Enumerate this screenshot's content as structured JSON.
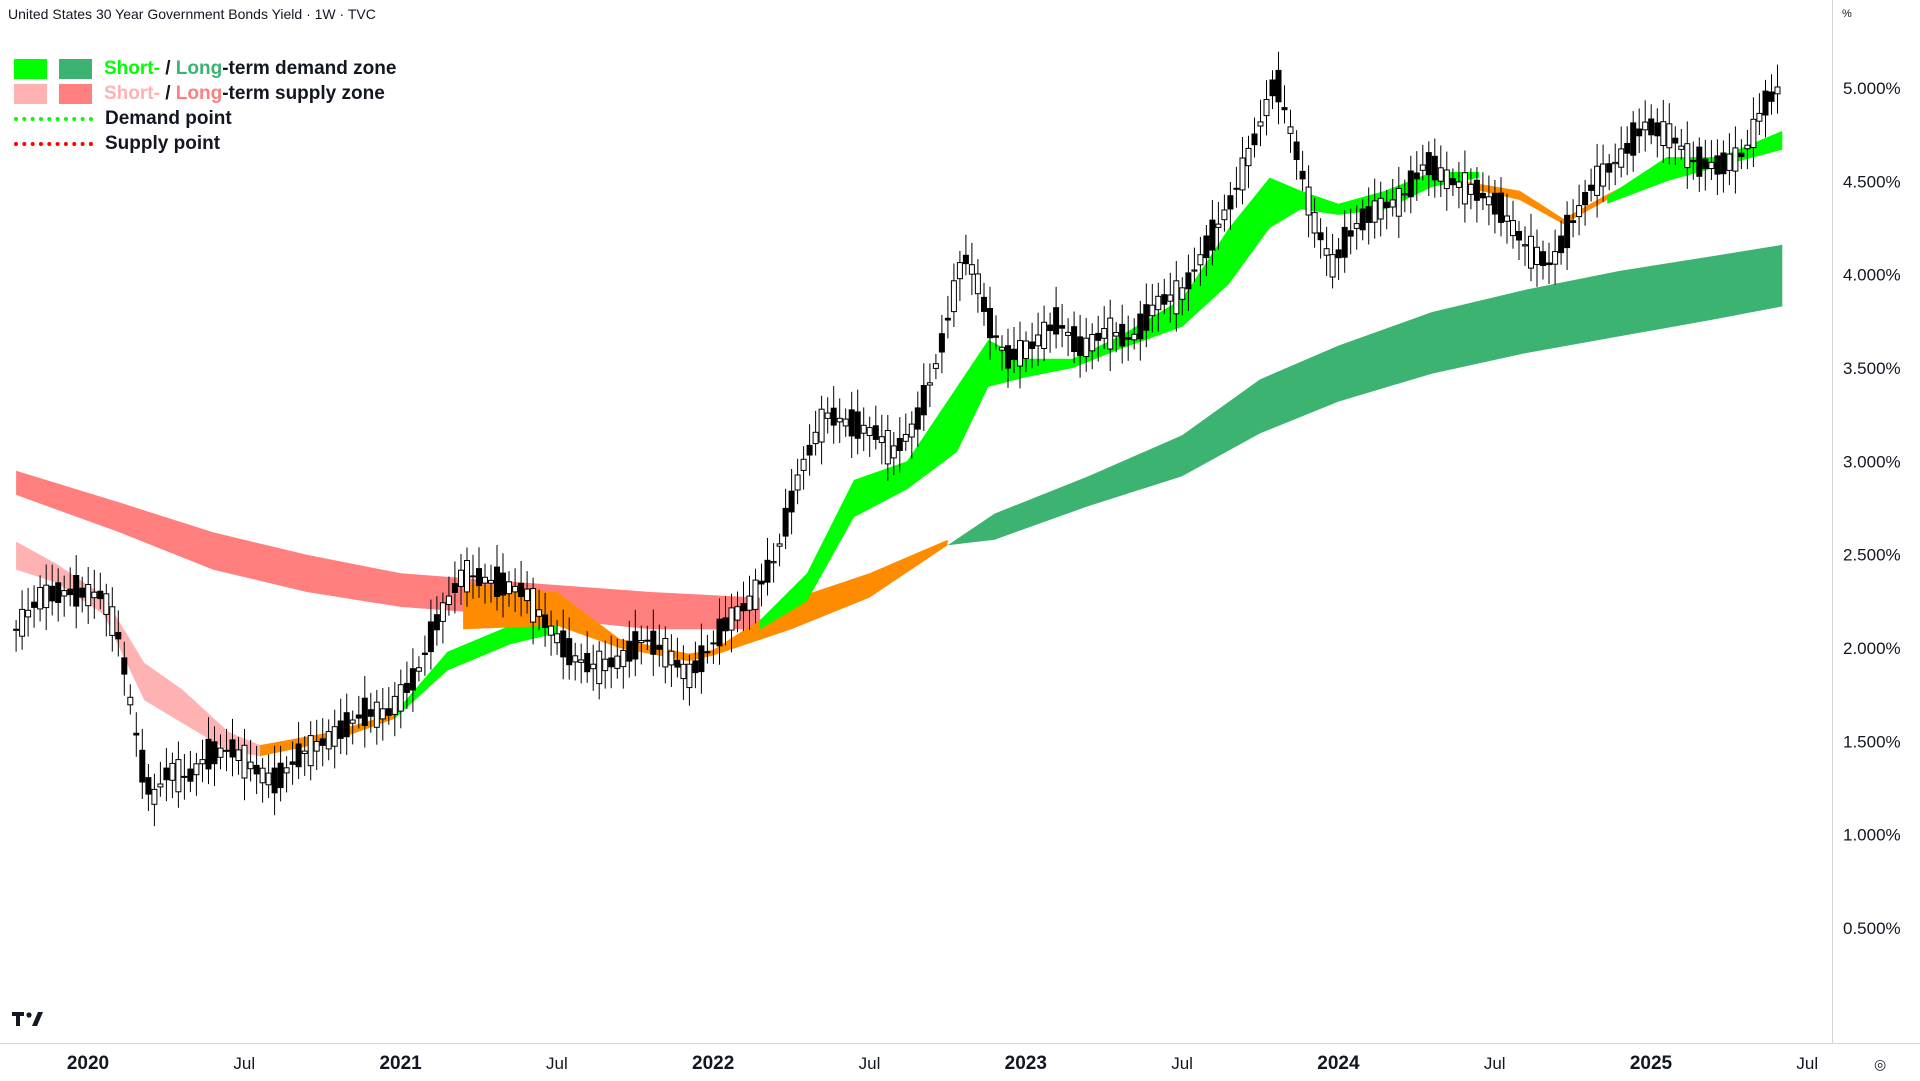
{
  "header": {
    "title": "United States 30 Year Government Bonds Yield · 1W · TVC"
  },
  "unit_label": "%",
  "legend": {
    "demand_zone": {
      "short": "Short-",
      "sep": " / ",
      "long": "Long",
      "rest": "-term demand zone"
    },
    "supply_zone": {
      "short": "Short-",
      "sep": " / ",
      "long": "Long",
      "rest": "-term supply zone"
    },
    "demand_point": "Demand point",
    "supply_point": "Supply point"
  },
  "icons": {
    "logo": "tradingview-logo-icon",
    "settings": "gear-icon"
  },
  "colors": {
    "short_demand": "#00ff00",
    "long_demand": "#3cb371",
    "short_supply": "#ffb2b2",
    "long_supply": "#ff7f7f",
    "overlap": "#ff8c00",
    "demand_point": "#00ff00",
    "supply_point": "#ff0000",
    "up_candle": "#ffffff",
    "down_candle": "#000000"
  },
  "chart_data": {
    "type": "candlestick",
    "title": "United States 30 Year Government Bonds Yield · 1W · TVC",
    "yunit": "%",
    "ylim": [
      0.5,
      5.2
    ],
    "y_ticks": [
      "5.000%",
      "4.500%",
      "4.000%",
      "3.500%",
      "3.000%",
      "2.500%",
      "2.000%",
      "1.500%",
      "1.000%",
      "0.500%"
    ],
    "x_ticks": [
      "2020",
      "Jul",
      "2021",
      "Jul",
      "2022",
      "Jul",
      "2023",
      "Jul",
      "2024",
      "Jul",
      "2025",
      "Jul"
    ],
    "x_tick_times": [
      2020.0,
      2020.5,
      2021.0,
      2021.5,
      2022.0,
      2022.5,
      2023.0,
      2023.5,
      2024.0,
      2024.5,
      2025.0,
      2025.5
    ],
    "xlim": [
      2019.77,
      2025.67
    ],
    "price_path": [
      [
        2019.77,
        2.1
      ],
      [
        2019.85,
        2.28
      ],
      [
        2019.95,
        2.3
      ],
      [
        2020.05,
        2.28
      ],
      [
        2020.1,
        2.05
      ],
      [
        2020.18,
        1.3
      ],
      [
        2020.21,
        1.2
      ],
      [
        2020.26,
        1.35
      ],
      [
        2020.32,
        1.3
      ],
      [
        2020.38,
        1.42
      ],
      [
        2020.46,
        1.46
      ],
      [
        2020.55,
        1.33
      ],
      [
        2020.6,
        1.28
      ],
      [
        2020.68,
        1.43
      ],
      [
        2020.78,
        1.52
      ],
      [
        2020.88,
        1.65
      ],
      [
        2020.96,
        1.65
      ],
      [
        2021.05,
        1.85
      ],
      [
        2021.12,
        2.15
      ],
      [
        2021.2,
        2.4
      ],
      [
        2021.3,
        2.35
      ],
      [
        2021.4,
        2.3
      ],
      [
        2021.47,
        2.12
      ],
      [
        2021.55,
        1.95
      ],
      [
        2021.62,
        1.9
      ],
      [
        2021.7,
        1.93
      ],
      [
        2021.78,
        2.05
      ],
      [
        2021.85,
        1.98
      ],
      [
        2021.92,
        1.85
      ],
      [
        2021.97,
        1.95
      ],
      [
        2022.05,
        2.15
      ],
      [
        2022.12,
        2.25
      ],
      [
        2022.2,
        2.48
      ],
      [
        2022.28,
        2.95
      ],
      [
        2022.36,
        3.25
      ],
      [
        2022.44,
        3.2
      ],
      [
        2022.52,
        3.15
      ],
      [
        2022.58,
        3.05
      ],
      [
        2022.65,
        3.2
      ],
      [
        2022.72,
        3.55
      ],
      [
        2022.8,
        4.1
      ],
      [
        2022.84,
        4.0
      ],
      [
        2022.88,
        3.75
      ],
      [
        2022.94,
        3.55
      ],
      [
        2023.02,
        3.62
      ],
      [
        2023.1,
        3.75
      ],
      [
        2023.18,
        3.6
      ],
      [
        2023.26,
        3.7
      ],
      [
        2023.34,
        3.65
      ],
      [
        2023.42,
        3.85
      ],
      [
        2023.5,
        3.9
      ],
      [
        2023.58,
        4.15
      ],
      [
        2023.66,
        4.4
      ],
      [
        2023.76,
        4.85
      ],
      [
        2023.8,
        5.05
      ],
      [
        2023.86,
        4.7
      ],
      [
        2023.92,
        4.3
      ],
      [
        2023.98,
        4.05
      ],
      [
        2024.05,
        4.25
      ],
      [
        2024.12,
        4.35
      ],
      [
        2024.2,
        4.4
      ],
      [
        2024.28,
        4.6
      ],
      [
        2024.36,
        4.5
      ],
      [
        2024.44,
        4.45
      ],
      [
        2024.52,
        4.35
      ],
      [
        2024.6,
        4.15
      ],
      [
        2024.68,
        4.05
      ],
      [
        2024.74,
        4.25
      ],
      [
        2024.82,
        4.5
      ],
      [
        2024.9,
        4.62
      ],
      [
        2024.98,
        4.8
      ],
      [
        2025.06,
        4.75
      ],
      [
        2025.14,
        4.6
      ],
      [
        2025.22,
        4.58
      ],
      [
        2025.3,
        4.65
      ],
      [
        2025.36,
        4.9
      ],
      [
        2025.42,
        5.02
      ]
    ],
    "series": [
      {
        "name": "Short-term supply zone",
        "band": [
          [
            2019.77,
            2.57,
            2.42
          ],
          [
            2019.9,
            2.45,
            2.35
          ],
          [
            2020.05,
            2.28,
            2.18
          ],
          [
            2020.18,
            1.92,
            1.72
          ],
          [
            2020.3,
            1.78,
            1.6
          ],
          [
            2020.45,
            1.55,
            1.45
          ],
          [
            2020.55,
            1.48,
            1.42
          ]
        ]
      },
      {
        "name": "Long-term supply zone",
        "band": [
          [
            2019.77,
            2.95,
            2.82
          ],
          [
            2020.1,
            2.78,
            2.62
          ],
          [
            2020.4,
            2.62,
            2.42
          ],
          [
            2020.7,
            2.5,
            2.3
          ],
          [
            2021.0,
            2.4,
            2.22
          ],
          [
            2021.4,
            2.35,
            2.17
          ],
          [
            2021.8,
            2.3,
            2.1
          ],
          [
            2022.15,
            2.27,
            2.1
          ]
        ]
      },
      {
        "name": "Overlap zone A",
        "band": [
          [
            2020.55,
            1.48,
            1.42
          ],
          [
            2020.78,
            1.55,
            1.5
          ],
          [
            2020.98,
            1.65,
            1.62
          ]
        ]
      },
      {
        "name": "Short-term demand zone A",
        "band": [
          [
            2020.98,
            1.65,
            1.62
          ],
          [
            2021.15,
            1.98,
            1.88
          ],
          [
            2021.35,
            2.12,
            2.02
          ],
          [
            2021.5,
            2.12,
            2.08
          ]
        ]
      },
      {
        "name": "Overlap zone B",
        "band": [
          [
            2021.2,
            2.35,
            2.1
          ],
          [
            2021.5,
            2.3,
            2.12
          ],
          [
            2021.7,
            2.05,
            2.0
          ],
          [
            2021.92,
            1.97,
            1.93
          ],
          [
            2022.0,
            1.99,
            1.96
          ],
          [
            2022.25,
            2.26,
            2.1
          ],
          [
            2022.5,
            2.4,
            2.27
          ],
          [
            2022.75,
            2.58,
            2.55
          ]
        ]
      },
      {
        "name": "Short-term demand zone B",
        "band": [
          [
            2022.15,
            2.15,
            2.1
          ],
          [
            2022.3,
            2.4,
            2.25
          ],
          [
            2022.45,
            2.9,
            2.7
          ],
          [
            2022.62,
            3.0,
            2.85
          ],
          [
            2022.78,
            3.4,
            3.05
          ],
          [
            2022.88,
            3.65,
            3.4
          ],
          [
            2023.0,
            3.55,
            3.45
          ],
          [
            2023.15,
            3.55,
            3.5
          ],
          [
            2023.3,
            3.67,
            3.6
          ],
          [
            2023.5,
            3.87,
            3.72
          ],
          [
            2023.65,
            4.25,
            3.95
          ],
          [
            2023.78,
            4.52,
            4.25
          ],
          [
            2023.88,
            4.45,
            4.35
          ],
          [
            2024.0,
            4.38,
            4.32
          ],
          [
            2024.15,
            4.45,
            4.35
          ],
          [
            2024.3,
            4.55,
            4.47
          ],
          [
            2024.45,
            4.55,
            4.52
          ]
        ]
      },
      {
        "name": "Long-term demand zone",
        "band": [
          [
            2022.75,
            2.55,
            2.55
          ],
          [
            2022.9,
            2.72,
            2.58
          ],
          [
            2023.2,
            2.92,
            2.76
          ],
          [
            2023.5,
            3.14,
            2.92
          ],
          [
            2023.75,
            3.44,
            3.15
          ],
          [
            2024.0,
            3.62,
            3.32
          ],
          [
            2024.3,
            3.8,
            3.47
          ],
          [
            2024.6,
            3.92,
            3.58
          ],
          [
            2024.9,
            4.02,
            3.67
          ],
          [
            2025.2,
            4.1,
            3.76
          ],
          [
            2025.42,
            4.16,
            3.83
          ]
        ]
      },
      {
        "name": "Overlap zone C",
        "band": [
          [
            2024.4,
            4.5,
            4.47
          ],
          [
            2024.58,
            4.45,
            4.4
          ],
          [
            2024.72,
            4.3,
            4.27
          ],
          [
            2024.86,
            4.43,
            4.4
          ],
          [
            2025.0,
            4.55,
            4.52
          ]
        ]
      },
      {
        "name": "Short-term demand zone C",
        "band": [
          [
            2024.86,
            4.42,
            4.38
          ],
          [
            2025.05,
            4.63,
            4.5
          ],
          [
            2025.22,
            4.63,
            4.58
          ],
          [
            2025.42,
            4.77,
            4.67
          ]
        ]
      }
    ]
  }
}
